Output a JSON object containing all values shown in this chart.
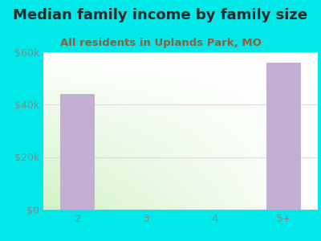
{
  "title": "Median family income by family size",
  "subtitle": "All residents in Uplands Park, MO",
  "categories": [
    "2",
    "3",
    "4",
    "5+"
  ],
  "values": [
    44000,
    0,
    0,
    56000
  ],
  "bar_color": "#c4afd4",
  "title_color": "#2a2a2a",
  "subtitle_color": "#8a6040",
  "bg_color": "#00e8e8",
  "plot_bg_color_topleft": "#d8f0d0",
  "plot_bg_color_topright": "#f5fdf5",
  "plot_bg_color_bottom": "#ffffff",
  "ylim": [
    0,
    60000
  ],
  "yticks": [
    0,
    20000,
    40000,
    60000
  ],
  "ytick_labels": [
    "$0",
    "$20k",
    "$40k",
    "$60k"
  ],
  "title_fontsize": 13,
  "subtitle_fontsize": 9.5,
  "tick_color": "#888888",
  "grid_color": "#dddddd"
}
